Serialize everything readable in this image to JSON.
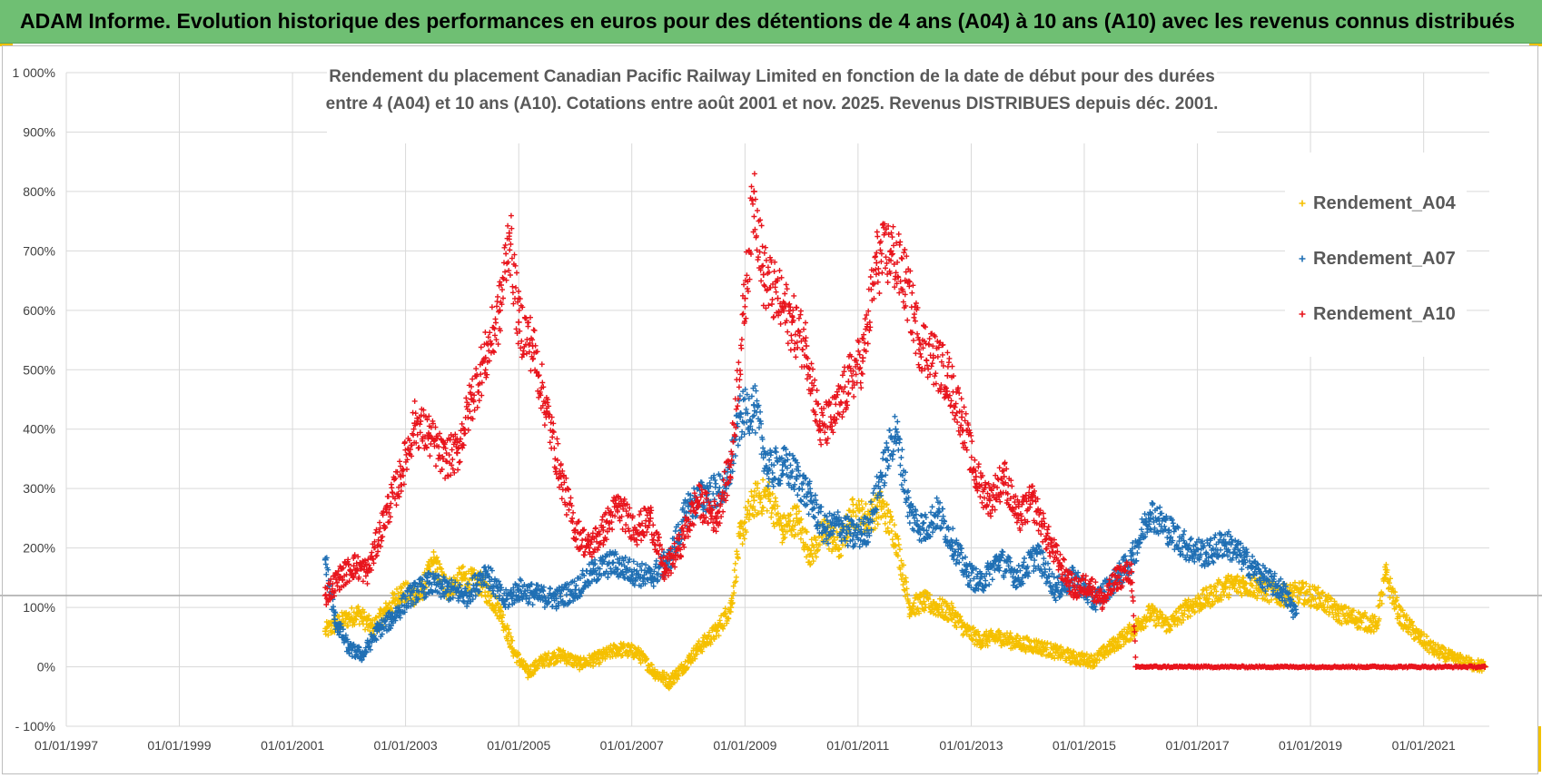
{
  "header": {
    "banner_title": "ADAM Informe. Evolution historique des performances en euros pour des détentions de 4 ans (A04) à 10 ans (A10) avec les revenus connus distribués"
  },
  "colors": {
    "banner_bg": "#6fbf73",
    "A04": "#f5c000",
    "A07": "#1f6fb4",
    "A10": "#e8141c",
    "grid": "#d9d9d9",
    "ref_line": "#a6a6a6"
  },
  "chart_data": {
    "type": "scatter",
    "title_line1": "Rendement du placement Canadian Pacific Railway Limited en fonction de la date de début pour des durées",
    "title_line2": "entre 4 (A04) et 10 ans (A10).  Cotations entre août 2001  et nov. 2025.  Revenus DISTRIBUES depuis déc. 2001.",
    "x_type": "date",
    "x_range": [
      "1997-01-01",
      "2022-03-01"
    ],
    "x_ticks": [
      "01/01/1997",
      "01/01/1999",
      "01/01/2001",
      "01/01/2003",
      "01/01/2005",
      "01/01/2007",
      "01/01/2009",
      "01/01/2011",
      "01/01/2013",
      "01/01/2015",
      "01/01/2017",
      "01/01/2019",
      "01/01/2021"
    ],
    "y_range": [
      -100,
      1000
    ],
    "y_unit": "%",
    "y_ticks": [
      "- 100%",
      "0%",
      "100%",
      "200%",
      "300%",
      "400%",
      "500%",
      "600%",
      "700%",
      "800%",
      "900%",
      "1 000%"
    ],
    "reference_line_y": 120,
    "grid": true,
    "legend_position": "right",
    "marker": "plus",
    "series": [
      {
        "name": "Rendement_A04",
        "points": [
          [
            "2001-08-01",
            60
          ],
          [
            "2001-11-01",
            75
          ],
          [
            "2002-03-01",
            90
          ],
          [
            "2002-06-01",
            65
          ],
          [
            "2002-09-01",
            95
          ],
          [
            "2002-12-01",
            125
          ],
          [
            "2003-04-01",
            120
          ],
          [
            "2003-07-01",
            175
          ],
          [
            "2003-10-01",
            130
          ],
          [
            "2004-01-01",
            150
          ],
          [
            "2004-05-01",
            140
          ],
          [
            "2004-09-01",
            95
          ],
          [
            "2004-12-01",
            25
          ],
          [
            "2005-03-01",
            -10
          ],
          [
            "2005-06-01",
            10
          ],
          [
            "2005-10-01",
            20
          ],
          [
            "2006-02-01",
            5
          ],
          [
            "2006-06-01",
            15
          ],
          [
            "2006-10-01",
            30
          ],
          [
            "2007-02-01",
            25
          ],
          [
            "2007-06-01",
            -10
          ],
          [
            "2007-09-01",
            -25
          ],
          [
            "2007-12-01",
            0
          ],
          [
            "2008-03-01",
            30
          ],
          [
            "2008-07-01",
            60
          ],
          [
            "2008-10-01",
            100
          ],
          [
            "2008-12-01",
            220
          ],
          [
            "2009-03-01",
            280
          ],
          [
            "2009-06-01",
            290
          ],
          [
            "2009-09-01",
            230
          ],
          [
            "2009-12-01",
            250
          ],
          [
            "2010-03-01",
            190
          ],
          [
            "2010-06-01",
            230
          ],
          [
            "2010-09-01",
            200
          ],
          [
            "2010-12-01",
            260
          ],
          [
            "2011-03-01",
            250
          ],
          [
            "2011-06-01",
            270
          ],
          [
            "2011-09-01",
            220
          ],
          [
            "2011-12-01",
            100
          ],
          [
            "2012-03-01",
            110
          ],
          [
            "2012-06-01",
            100
          ],
          [
            "2012-09-01",
            90
          ],
          [
            "2012-12-01",
            60
          ],
          [
            "2013-03-01",
            45
          ],
          [
            "2013-07-01",
            50
          ],
          [
            "2013-11-01",
            40
          ],
          [
            "2014-03-01",
            35
          ],
          [
            "2014-07-01",
            25
          ],
          [
            "2014-11-01",
            15
          ],
          [
            "2015-03-01",
            10
          ],
          [
            "2015-07-01",
            35
          ],
          [
            "2015-11-01",
            60
          ],
          [
            "2016-03-01",
            90
          ],
          [
            "2016-07-01",
            70
          ],
          [
            "2016-11-01",
            100
          ],
          [
            "2017-03-01",
            115
          ],
          [
            "2017-07-01",
            135
          ],
          [
            "2017-11-01",
            140
          ],
          [
            "2018-03-01",
            130
          ],
          [
            "2018-07-01",
            120
          ],
          [
            "2018-11-01",
            125
          ],
          [
            "2019-03-01",
            115
          ],
          [
            "2019-07-01",
            90
          ],
          [
            "2019-11-01",
            80
          ],
          [
            "2020-03-01",
            70
          ],
          [
            "2020-05-01",
            155
          ],
          [
            "2020-08-01",
            85
          ],
          [
            "2020-12-01",
            50
          ],
          [
            "2021-03-01",
            30
          ],
          [
            "2021-07-01",
            15
          ],
          [
            "2021-11-01",
            5
          ],
          [
            "2022-02-01",
            0
          ]
        ]
      },
      {
        "name": "Rendement_A07",
        "points": [
          [
            "2001-08-01",
            180
          ],
          [
            "2001-10-01",
            80
          ],
          [
            "2002-01-01",
            30
          ],
          [
            "2002-04-01",
            20
          ],
          [
            "2002-07-01",
            60
          ],
          [
            "2002-10-01",
            80
          ],
          [
            "2003-02-01",
            120
          ],
          [
            "2003-06-01",
            140
          ],
          [
            "2003-10-01",
            130
          ],
          [
            "2004-02-01",
            120
          ],
          [
            "2004-06-01",
            160
          ],
          [
            "2004-10-01",
            110
          ],
          [
            "2005-01-01",
            130
          ],
          [
            "2005-05-01",
            120
          ],
          [
            "2005-09-01",
            115
          ],
          [
            "2006-01-01",
            130
          ],
          [
            "2006-05-01",
            160
          ],
          [
            "2006-09-01",
            175
          ],
          [
            "2007-01-01",
            160
          ],
          [
            "2007-05-01",
            150
          ],
          [
            "2007-09-01",
            180
          ],
          [
            "2008-01-01",
            270
          ],
          [
            "2008-05-01",
            290
          ],
          [
            "2008-09-01",
            300
          ],
          [
            "2008-12-01",
            420
          ],
          [
            "2009-03-01",
            440
          ],
          [
            "2009-06-01",
            330
          ],
          [
            "2009-09-01",
            340
          ],
          [
            "2009-12-01",
            320
          ],
          [
            "2010-03-01",
            280
          ],
          [
            "2010-06-01",
            230
          ],
          [
            "2010-09-01",
            240
          ],
          [
            "2010-12-01",
            220
          ],
          [
            "2011-03-01",
            230
          ],
          [
            "2011-06-01",
            320
          ],
          [
            "2011-09-01",
            400
          ],
          [
            "2011-12-01",
            260
          ],
          [
            "2012-03-01",
            230
          ],
          [
            "2012-06-01",
            260
          ],
          [
            "2012-09-01",
            210
          ],
          [
            "2012-12-01",
            160
          ],
          [
            "2013-03-01",
            140
          ],
          [
            "2013-07-01",
            180
          ],
          [
            "2013-11-01",
            150
          ],
          [
            "2014-03-01",
            190
          ],
          [
            "2014-07-01",
            130
          ],
          [
            "2014-11-01",
            150
          ],
          [
            "2015-03-01",
            110
          ],
          [
            "2015-07-01",
            140
          ],
          [
            "2015-11-01",
            180
          ],
          [
            "2016-03-01",
            260
          ],
          [
            "2016-07-01",
            230
          ],
          [
            "2016-11-01",
            200
          ],
          [
            "2017-03-01",
            190
          ],
          [
            "2017-07-01",
            210
          ],
          [
            "2017-11-01",
            180
          ],
          [
            "2018-03-01",
            150
          ],
          [
            "2018-07-01",
            130
          ],
          [
            "2018-10-01",
            90
          ]
        ]
      },
      {
        "name": "Rendement_A10",
        "points": [
          [
            "2001-08-01",
            120
          ],
          [
            "2001-11-01",
            150
          ],
          [
            "2002-02-01",
            170
          ],
          [
            "2002-05-01",
            160
          ],
          [
            "2002-09-01",
            260
          ],
          [
            "2002-12-01",
            320
          ],
          [
            "2003-03-01",
            410
          ],
          [
            "2003-06-01",
            390
          ],
          [
            "2003-09-01",
            350
          ],
          [
            "2003-12-01",
            360
          ],
          [
            "2004-03-01",
            450
          ],
          [
            "2004-06-01",
            520
          ],
          [
            "2004-09-01",
            600
          ],
          [
            "2004-11-01",
            730
          ],
          [
            "2005-01-01",
            580
          ],
          [
            "2005-04-01",
            540
          ],
          [
            "2005-07-01",
            430
          ],
          [
            "2005-10-01",
            320
          ],
          [
            "2006-01-01",
            230
          ],
          [
            "2006-04-01",
            200
          ],
          [
            "2006-07-01",
            230
          ],
          [
            "2006-10-01",
            270
          ],
          [
            "2007-02-01",
            230
          ],
          [
            "2007-05-01",
            250
          ],
          [
            "2007-08-01",
            160
          ],
          [
            "2007-11-01",
            200
          ],
          [
            "2008-03-01",
            280
          ],
          [
            "2008-07-01",
            250
          ],
          [
            "2008-10-01",
            340
          ],
          [
            "2009-01-01",
            620
          ],
          [
            "2009-03-01",
            800
          ],
          [
            "2009-05-01",
            660
          ],
          [
            "2009-08-01",
            620
          ],
          [
            "2009-11-01",
            580
          ],
          [
            "2010-02-01",
            540
          ],
          [
            "2010-05-01",
            400
          ],
          [
            "2010-08-01",
            420
          ],
          [
            "2010-11-01",
            480
          ],
          [
            "2011-02-01",
            520
          ],
          [
            "2011-05-01",
            680
          ],
          [
            "2011-08-01",
            700
          ],
          [
            "2011-11-01",
            650
          ],
          [
            "2012-02-01",
            550
          ],
          [
            "2012-05-01",
            520
          ],
          [
            "2012-08-01",
            490
          ],
          [
            "2012-11-01",
            420
          ],
          [
            "2013-02-01",
            320
          ],
          [
            "2013-05-01",
            280
          ],
          [
            "2013-08-01",
            320
          ],
          [
            "2013-11-01",
            250
          ],
          [
            "2014-02-01",
            280
          ],
          [
            "2014-05-01",
            220
          ],
          [
            "2014-08-01",
            170
          ],
          [
            "2014-11-01",
            130
          ],
          [
            "2015-02-01",
            140
          ],
          [
            "2015-05-01",
            110
          ],
          [
            "2015-08-01",
            150
          ],
          [
            "2015-11-01",
            160
          ],
          [
            "2015-12-01",
            0
          ],
          [
            "2017-01-01",
            0
          ],
          [
            "2018-06-01",
            0
          ],
          [
            "2020-01-01",
            0
          ],
          [
            "2022-02-01",
            0
          ]
        ]
      }
    ]
  }
}
